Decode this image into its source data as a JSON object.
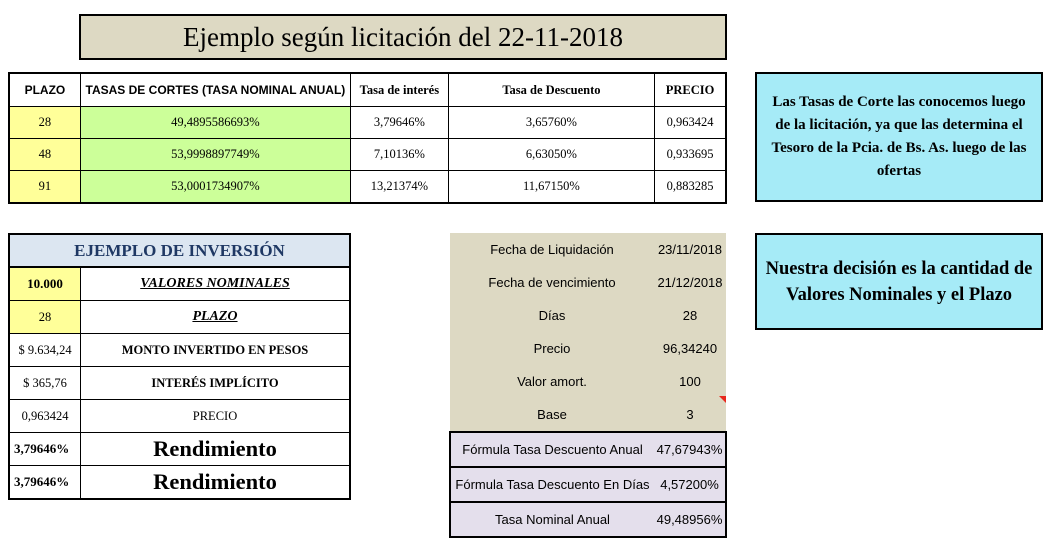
{
  "title": "Ejemplo según licitación del 22-11-2018",
  "rates_table": {
    "headers": [
      "PLAZO",
      "TASAS DE CORTES (TASA NOMINAL ANUAL)",
      "Tasa de interés",
      "Tasa de Descuento",
      "PRECIO"
    ],
    "rows": [
      [
        "28",
        "49,4895586693%",
        "3,79646%",
        "3,65760%",
        "0,963424"
      ],
      [
        "48",
        "53,9998897749%",
        "7,10136%",
        "6,63050%",
        "0,933695"
      ],
      [
        "91",
        "53,0001734907%",
        "13,21374%",
        "11,67150%",
        "0,883285"
      ]
    ]
  },
  "info1": "Las Tasas de Corte las conocemos luego de la licitación, ya que las determina el Tesoro de la Pcia. de Bs. As. luego de las ofertas",
  "info2": "Nuestra decisión es la cantidad de Valores Nominales y el Plazo",
  "investment": {
    "header": "EJEMPLO DE INVERSIÓN",
    "rows": [
      {
        "value": "10.000",
        "label": "VALORES NOMINALES"
      },
      {
        "value": "28",
        "label": "PLAZO"
      },
      {
        "value": "$ 9.634,24",
        "label": "MONTO INVERTIDO EN PESOS"
      },
      {
        "value": "$ 365,76",
        "label": "INTERÉS IMPLÍCITO"
      },
      {
        "value": "0,963424",
        "label": "PRECIO"
      },
      {
        "value": "3,79646%",
        "label": "Rendimiento"
      },
      {
        "value": "3,79646%",
        "label": "Rendimiento"
      }
    ]
  },
  "calc": {
    "rows": [
      {
        "label": "Fecha de Liquidación",
        "value": "23/11/2018"
      },
      {
        "label": "Fecha de vencimiento",
        "value": "21/12/2018"
      },
      {
        "label": "Días",
        "value": "28"
      },
      {
        "label": "Precio",
        "value": "96,34240"
      },
      {
        "label": "Valor amort.",
        "value": "100"
      },
      {
        "label": "Base",
        "value": "3"
      },
      {
        "label": "Fórmula Tasa Descuento Anual",
        "value": "47,67943%"
      },
      {
        "label": "Fórmula Tasa Descuento En Días",
        "value": "4,57200%"
      },
      {
        "label": "Tasa Nominal Anual",
        "value": "49,48956%"
      }
    ]
  },
  "colors": {
    "title_bg": "#ddd9c3",
    "info_bg": "#a6ebf7",
    "yellow": "#ffff99",
    "green": "#ccff99",
    "lavender": "#e4dfec"
  }
}
